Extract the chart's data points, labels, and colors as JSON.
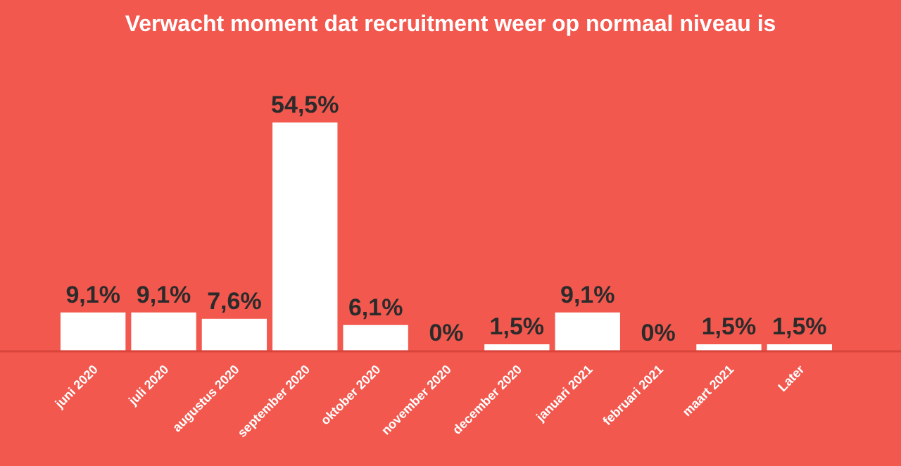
{
  "chart_data": {
    "type": "bar",
    "title": "Verwacht moment dat recruitment weer op normaal niveau is",
    "categories": [
      "juni 2020",
      "juli 2020",
      "augustus 2020",
      "september 2020",
      "oktober 2020",
      "november 2020",
      "december 2020",
      "januari 2021",
      "februari 2021",
      "maart 2021",
      "Later"
    ],
    "values": [
      9.1,
      9.1,
      7.6,
      54.5,
      6.1,
      0,
      1.5,
      9.1,
      0,
      1.5,
      1.5
    ],
    "value_labels": [
      "9,1%",
      "9,1%",
      "7,6%",
      "54,5%",
      "6,1%",
      "0%",
      "1,5%",
      "9,1%",
      "0%",
      "1,5%",
      "1,5%"
    ],
    "color": "#ffffff"
  }
}
